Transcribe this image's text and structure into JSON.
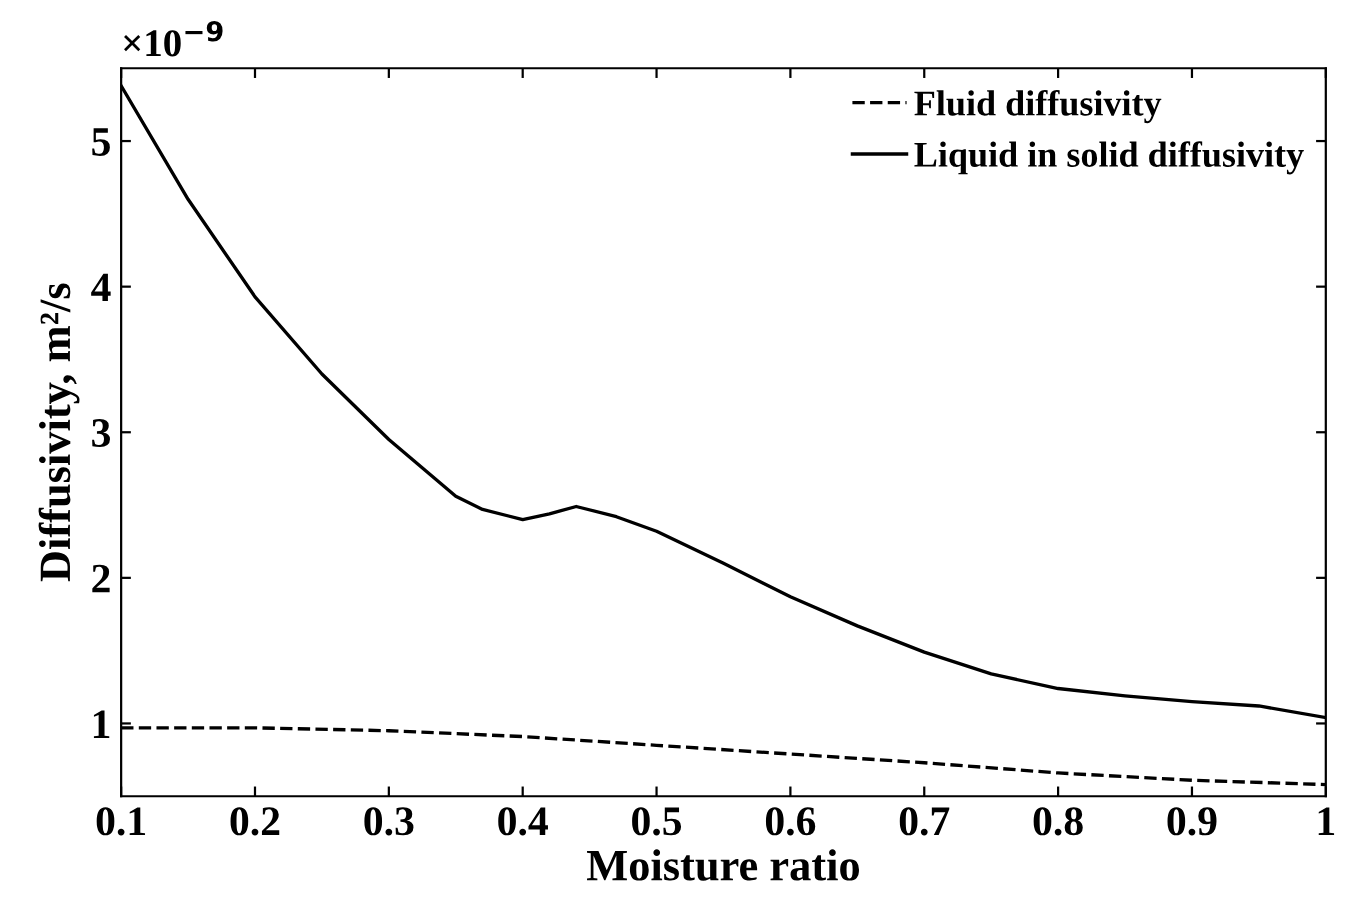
{
  "chart_data": {
    "type": "line",
    "xlabel": "Moisture ratio",
    "ylabel": "Diffusivity, m²/s",
    "annotations": [
      "×10$^{−9}$"
    ],
    "xlim": [
      0.1,
      1
    ],
    "xticks": [
      0.1,
      0.2,
      0.3,
      0.4,
      0.5,
      0.6,
      0.7,
      0.8,
      0.9,
      1
    ],
    "ylim": [
      0.5,
      5.5
    ],
    "yticks": [
      1,
      2,
      3,
      4,
      5
    ],
    "legend": "top right",
    "grid": false,
    "series": [
      {
        "name": "Fluid diffusivity",
        "color": "#000000",
        "line_style": "dashed",
        "x": [
          0.1,
          0.2,
          0.3,
          0.4,
          0.5,
          0.6,
          0.7,
          0.8,
          0.9,
          1.0
        ],
        "values": [
          0.97,
          0.97,
          0.95,
          0.91,
          0.85,
          0.79,
          0.73,
          0.66,
          0.61,
          0.58
        ]
      },
      {
        "name": "Liquid in solid diffusivity",
        "color": "#000000",
        "line_style": "solid",
        "x": [
          0.1,
          0.15,
          0.2,
          0.25,
          0.3,
          0.35,
          0.37,
          0.4,
          0.42,
          0.44,
          0.47,
          0.5,
          0.55,
          0.6,
          0.65,
          0.7,
          0.75,
          0.8,
          0.85,
          0.9,
          0.95,
          1.0
        ],
        "values": [
          5.38,
          4.6,
          3.93,
          3.4,
          2.95,
          2.56,
          2.47,
          2.4,
          2.44,
          2.49,
          2.42,
          2.32,
          2.1,
          1.87,
          1.67,
          1.49,
          1.34,
          1.24,
          1.19,
          1.15,
          1.12,
          1.04
        ]
      }
    ]
  }
}
